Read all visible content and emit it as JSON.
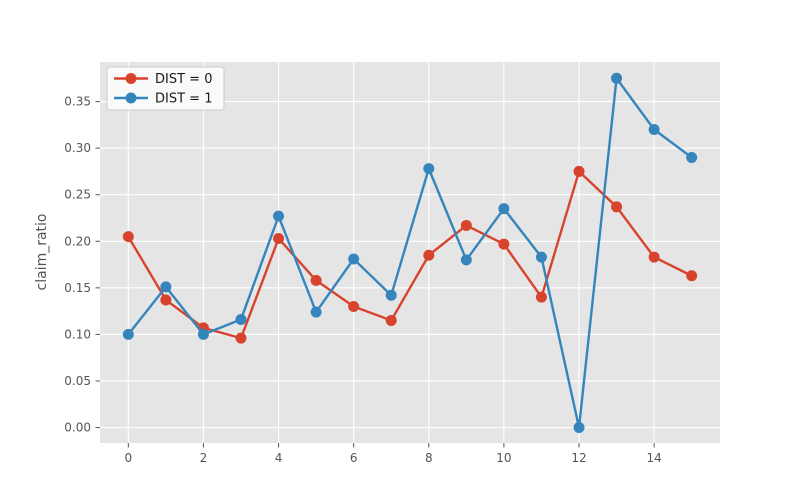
{
  "chart_data": {
    "type": "line",
    "title": "",
    "xlabel": "",
    "ylabel": "claim_ratio",
    "x": [
      0,
      1,
      2,
      3,
      4,
      5,
      6,
      7,
      8,
      9,
      10,
      11,
      12,
      13,
      14,
      15
    ],
    "series": [
      {
        "name": "DIST = 0",
        "color": "#d8432e",
        "values": [
          0.205,
          0.137,
          0.107,
          0.096,
          0.203,
          0.158,
          0.13,
          0.115,
          0.185,
          0.217,
          0.197,
          0.14,
          0.275,
          0.237,
          0.183,
          0.163
        ]
      },
      {
        "name": "DIST = 1",
        "color": "#3585bd",
        "values": [
          0.1,
          0.151,
          0.1,
          0.116,
          0.227,
          0.124,
          0.181,
          0.142,
          0.278,
          0.18,
          0.235,
          0.183,
          0.0,
          0.375,
          0.32,
          0.29
        ]
      }
    ],
    "xlim": [
      -0.754,
      15.754
    ],
    "ylim": [
      -0.0166,
      0.3925
    ],
    "xticks": [
      0,
      2,
      4,
      6,
      8,
      10,
      12,
      14
    ],
    "yticks": [
      0.0,
      0.05,
      0.1,
      0.15,
      0.2,
      0.25,
      0.3,
      0.35
    ],
    "ytick_labels": [
      "0.00",
      "0.05",
      "0.10",
      "0.15",
      "0.20",
      "0.25",
      "0.30",
      "0.35"
    ],
    "grid": true,
    "legend_position": "upper-left",
    "style": {
      "figure_bg": "#ffffff",
      "panel_bg": "#e5e5e5",
      "grid_color": "#ffffff",
      "tick_mark_color": "#555555",
      "tick_label_color": "#555555",
      "axis_label_color": "#555555",
      "legend_bg": "#fcfcfc",
      "legend_border": "#cccccc",
      "legend_text_color": "#1a1a1a",
      "marker_radius": 5.5,
      "line_width": 2.4
    }
  }
}
